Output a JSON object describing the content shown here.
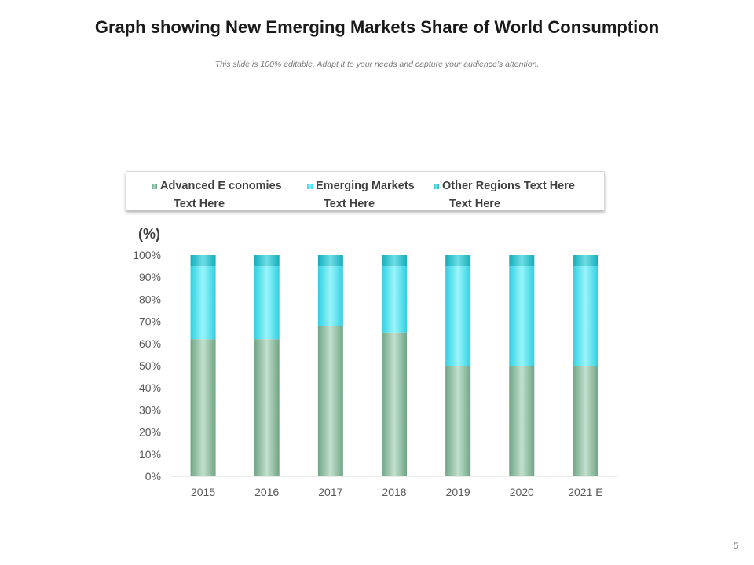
{
  "slide": {
    "title": "Graph showing New Emerging Markets Share of World Consumption",
    "subtitle": "This slide is 100% editable. Adapt it to your needs and capture your audience’s attention.",
    "page_number": "5"
  },
  "legend": [
    {
      "line1": "Advanced E conomies",
      "line2": "Text Here"
    },
    {
      "line1": "Emerging Markets",
      "line2": "Text Here"
    },
    {
      "line1": "Other Regions Text Here",
      "line2": "Text Here"
    }
  ],
  "colors": {
    "advanced": "#80b596",
    "advanced_dark": "#5f9a78",
    "emerging": "#3fd6e6",
    "emerging_light": "#8cf2fa",
    "other": "#1fb8c4",
    "other_light": "#7ae3ea",
    "axis": "#d9d9d9",
    "text": "#595959"
  },
  "chart_data": {
    "type": "bar",
    "stacked": true,
    "ylabel": "(%)",
    "categories": [
      "2015",
      "2016",
      "2017",
      "2018",
      "2019",
      "2020",
      "2021 E"
    ],
    "ylim": [
      0,
      100
    ],
    "yticks": [
      0,
      10,
      20,
      30,
      40,
      50,
      60,
      70,
      80,
      90,
      100
    ],
    "ytick_labels": [
      "0%",
      "10%",
      "20%",
      "30%",
      "40%",
      "50%",
      "60%",
      "70%",
      "80%",
      "90%",
      "100%"
    ],
    "grid": false,
    "legend_position": "top",
    "series": [
      {
        "name": "Advanced E conomies Text Here",
        "values": [
          62,
          62,
          68,
          65,
          50,
          50,
          50
        ]
      },
      {
        "name": "Emerging Markets Text Here",
        "values": [
          33,
          33,
          27,
          30,
          45,
          45,
          45
        ]
      },
      {
        "name": "Other Regions Text Here Text Here",
        "values": [
          5,
          5,
          5,
          5,
          5,
          5,
          5
        ]
      }
    ]
  }
}
